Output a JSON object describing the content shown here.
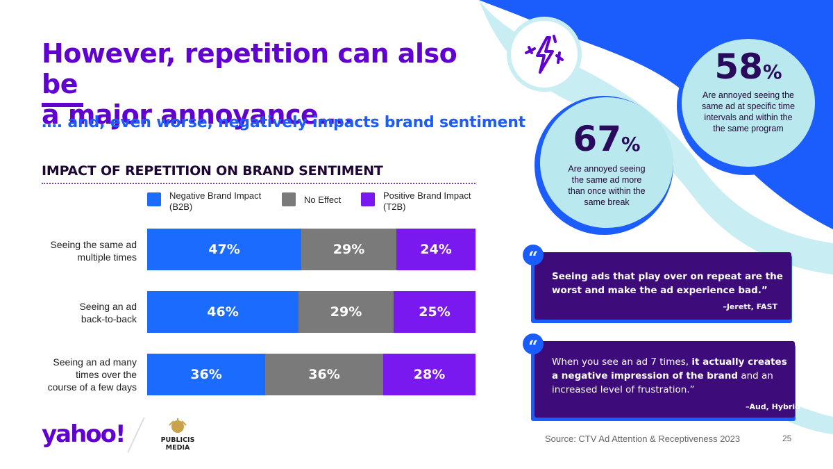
{
  "title_lines": [
    "However, repetition can also be",
    "a major annoyance…."
  ],
  "subtitle": "…. and, even worse, negatively impacts brand sentiment",
  "colors": {
    "negative": "#1b6bff",
    "neutral": "#7a7a7a",
    "positive": "#7a18f0",
    "brand_purple": "#6001d2",
    "accent_blue": "#1b5dfc"
  },
  "chart_data": {
    "type": "bar",
    "orientation": "horizontal",
    "stacked": true,
    "title": "IMPACT OF REPETITION ON BRAND SENTIMENT",
    "categories": [
      "Seeing the same ad multiple times",
      "Seeing an ad back-to-back",
      "Seeing an ad many times over the course of a few days"
    ],
    "category_display": [
      [
        "Seeing the same ad",
        "multiple times"
      ],
      [
        "Seeing an ad",
        "back-to-back"
      ],
      [
        "Seeing an ad many",
        "times over the",
        "course of a few days"
      ]
    ],
    "series": [
      {
        "name": "Negative Brand Impact (B2B)",
        "legend_lines": [
          "Negative Brand Impact",
          "(B2B)"
        ],
        "values": [
          47,
          46,
          36
        ]
      },
      {
        "name": "No Effect",
        "legend_lines": [
          "No Effect"
        ],
        "values": [
          29,
          29,
          36
        ]
      },
      {
        "name": "Positive Brand Impact (T2B)",
        "legend_lines": [
          "Positive Brand Impact",
          "(T2B)"
        ],
        "values": [
          24,
          25,
          28
        ]
      }
    ],
    "xlim": [
      0,
      100
    ],
    "value_suffix": "%"
  },
  "stats": [
    {
      "value": "58",
      "unit": "%",
      "text_lines": [
        "Are annoyed seeing the",
        "same ad at specific time",
        "intervals and within the",
        "the same program"
      ]
    },
    {
      "value": "67",
      "unit": "%",
      "text_lines": [
        "Are annoyed seeing",
        "the same ad more",
        "than once within the",
        "same break"
      ]
    }
  ],
  "quotes": [
    {
      "mark": "“",
      "text": "Seeing ads that play over on repeat are the worst and make the ad experience bad.”",
      "attribution": "–Jerett, FAST"
    },
    {
      "mark": "“",
      "segments": [
        {
          "text": "When you see an ad 7 times, ",
          "bold": false
        },
        {
          "text": "it actually creates a negative impression of the brand",
          "bold": true
        },
        {
          "text": " and an increased level of frustration.”",
          "bold": false
        }
      ],
      "attribution": "–Aud, Hybrid"
    }
  ],
  "footer": {
    "logo_yahoo": "yahoo!",
    "logo_publicis": [
      "PUBLICIS",
      "MEDIA"
    ],
    "source": "Source: CTV Ad Attention & Receptiveness 2023",
    "page_number": "25"
  }
}
